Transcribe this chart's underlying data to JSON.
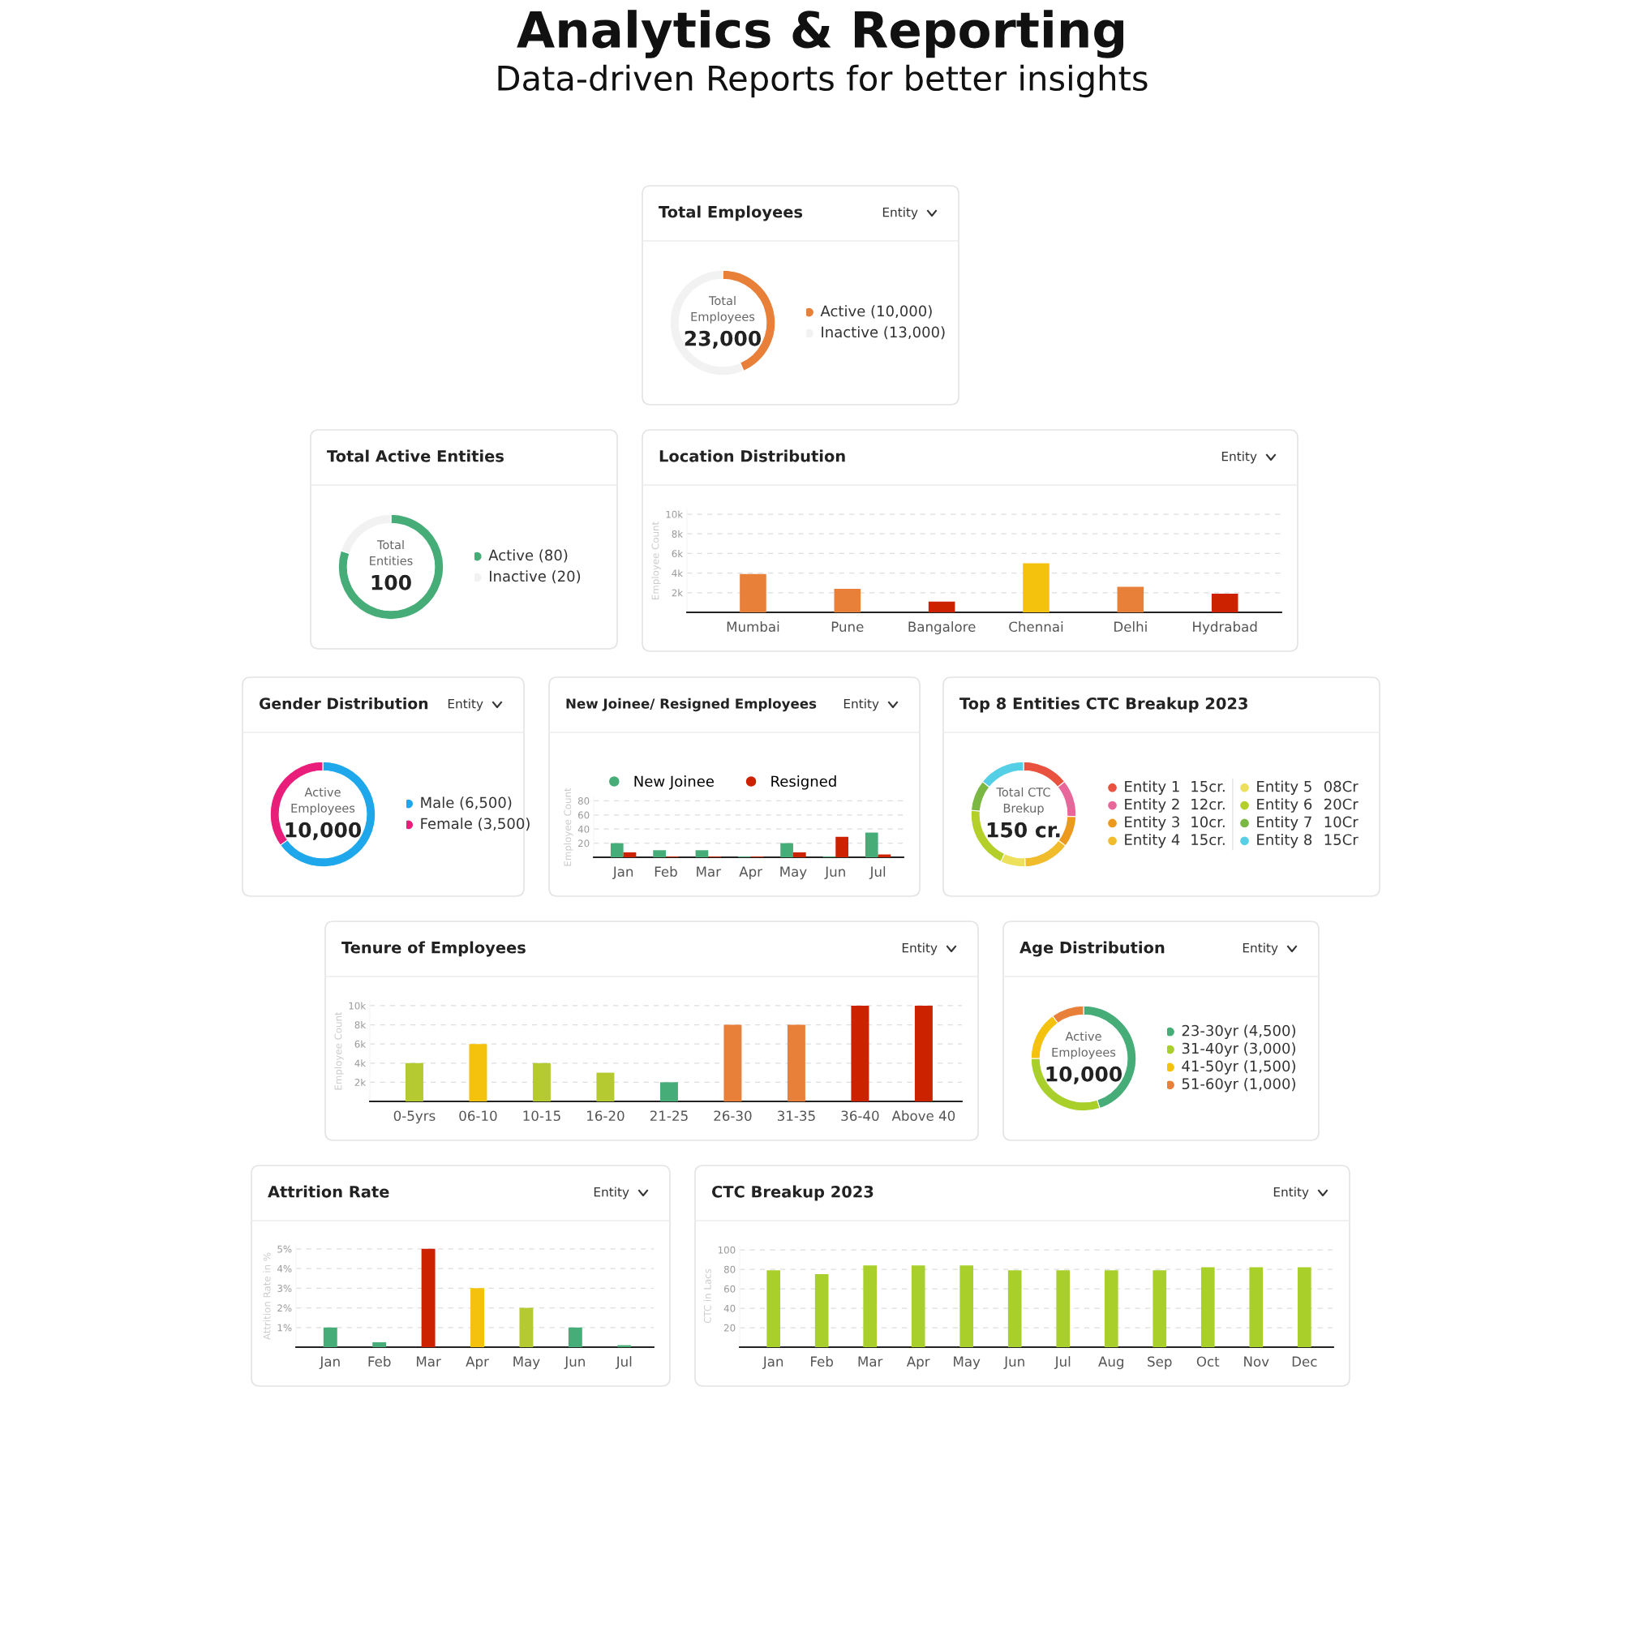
{
  "chart_data": [
    {
      "type": "other",
      "title": "Analytics & Reporting",
      "subtitle": "Data-driven Reports for better insights"
    },
    {
      "type": "donut",
      "title": "Total Employees",
      "subtitle": "Entity",
      "categories": [
        "Active (10,000)",
        "Inactive (13,000)"
      ],
      "values": [
        10000,
        13000
      ],
      "colors": [
        "#e8803a",
        "#f2f2f2"
      ],
      "legend": "right",
      "annotations": [
        "Total\nEmployees",
        "23,000"
      ]
    },
    {
      "type": "donut",
      "title": "Total Active Entities",
      "categories": [
        "Active (80)",
        "Inactive (20)"
      ],
      "values": [
        80,
        20
      ],
      "colors": [
        "#47ad78",
        "#f2f2f2"
      ],
      "legend": "right",
      "annotations": [
        "Total\nEntities",
        "100"
      ]
    },
    {
      "type": "bar",
      "title": "Location Distribution",
      "subtitle": "Entity",
      "ylabel": "Employee Count",
      "categories": [
        "Mumbai",
        "Pune",
        "Bangalore",
        "Chennai",
        "Delhi",
        "Hydrabad"
      ],
      "values": [
        3900,
        2400,
        1100,
        5000,
        2600,
        1900
      ],
      "colors": [
        "#e8803a",
        "#e8803a",
        "#cc2200",
        "#f4c20d",
        "#e8803a",
        "#cc2200"
      ],
      "ylim": [
        0,
        10500
      ],
      "yticks": [
        {
          "value": 2000,
          "label": "2k"
        },
        {
          "value": 4000,
          "label": "4k"
        },
        {
          "value": 6000,
          "label": "6k"
        },
        {
          "value": 8000,
          "label": "8k"
        },
        {
          "value": 10000,
          "label": "10k"
        }
      ],
      "grid": "y"
    },
    {
      "type": "donut",
      "title": "Gender Distribution",
      "subtitle": "Entity",
      "categories": [
        "Male (6,500)",
        "Female (3,500)"
      ],
      "values": [
        6500,
        3500
      ],
      "colors": [
        "#1ea7ea",
        "#e91e7b"
      ],
      "legend": "right",
      "annotations": [
        "Active\nEmployees",
        "10,000"
      ]
    },
    {
      "type": "bar",
      "title": "New Joinee/ Resigned Employees",
      "subtitle": "Entity",
      "ylabel": "Employee Count",
      "categories": [
        "Jan",
        "Feb",
        "Mar",
        "Apr",
        "May",
        "Jun",
        "Jul"
      ],
      "series": [
        {
          "name": "New Joinee",
          "color": "#47ad78",
          "values": [
            20,
            10,
            10,
            1,
            20,
            1,
            35
          ]
        },
        {
          "name": "Resigned",
          "color": "#cc2200",
          "values": [
            7,
            1,
            1,
            1,
            7,
            29,
            4
          ]
        }
      ],
      "ylim": [
        0,
        85
      ],
      "yticks": [
        20,
        40,
        60,
        80
      ],
      "grid": "y",
      "legend": "top left"
    },
    {
      "type": "donut",
      "title": "Top 8 Entities CTC Breakup 2023",
      "categories": [
        "Entity 1",
        "Entity 2",
        "Entity 3",
        "Entity 4",
        "Entity 5",
        "Entity 6",
        "Entity 7",
        "Entity 8"
      ],
      "values": [
        15,
        12,
        10,
        15,
        8,
        20,
        10,
        15
      ],
      "value_labels": [
        "15cr.",
        "12cr.",
        "10cr.",
        "15cr.",
        "08Cr",
        "20Cr",
        "10Cr",
        "15Cr"
      ],
      "colors": [
        "#e8523f",
        "#e8679a",
        "#ec9a1e",
        "#f0bc2c",
        "#ede05a",
        "#b5cf2a",
        "#7ab843",
        "#55cfe5"
      ],
      "legend": "right",
      "annotations": [
        "Total CTC\nBrekup",
        "150 cr."
      ]
    },
    {
      "type": "bar",
      "title": "Tenure of Employees",
      "subtitle": "Entity",
      "ylabel": "Employee Count",
      "categories": [
        "0-5yrs",
        "06-10",
        "10-15",
        "16-20",
        "21-25",
        "26-30",
        "31-35",
        "36-40",
        "Above 40"
      ],
      "values": [
        4000,
        6000,
        4000,
        3000,
        2000,
        8000,
        8000,
        10000,
        10000
      ],
      "colors": [
        "#b5c930",
        "#f4c20d",
        "#b5c930",
        "#b5c930",
        "#47ad78",
        "#e8803a",
        "#e8803a",
        "#cc2200",
        "#cc2200"
      ],
      "ylim": [
        0,
        10500
      ],
      "yticks": [
        {
          "value": 2000,
          "label": "2k"
        },
        {
          "value": 4000,
          "label": "4k"
        },
        {
          "value": 6000,
          "label": "6k"
        },
        {
          "value": 8000,
          "label": "8k"
        },
        {
          "value": 10000,
          "label": "10k"
        }
      ],
      "grid": "y"
    },
    {
      "type": "donut",
      "title": "Age Distribution",
      "subtitle": "Entity",
      "categories": [
        "23-30yr (4,500)",
        "31-40yr (3,000)",
        "41-50yr (1,500)",
        "51-60yr (1,000)"
      ],
      "values": [
        4500,
        3000,
        1500,
        1000
      ],
      "colors": [
        "#47ad78",
        "#a8cf2a",
        "#f4c20d",
        "#e8803a"
      ],
      "legend": "right",
      "annotations": [
        "Active\nEmployees",
        "10,000"
      ]
    },
    {
      "type": "bar",
      "title": "Attrition Rate",
      "subtitle": "Entity",
      "ylabel": "Attrition Rate in %",
      "categories": [
        "Jan",
        "Feb",
        "Mar",
        "Apr",
        "May",
        "Jun",
        "Jul"
      ],
      "values": [
        1,
        0.25,
        5,
        3,
        2,
        1,
        0.1
      ],
      "colors": [
        "#47ad78",
        "#47ad78",
        "#cc2200",
        "#f4c20d",
        "#b5c930",
        "#47ad78",
        "#47ad78"
      ],
      "ylim": [
        0,
        5.2
      ],
      "yticks": [
        {
          "value": 1,
          "label": "1%"
        },
        {
          "value": 2,
          "label": "2%"
        },
        {
          "value": 3,
          "label": "3%"
        },
        {
          "value": 4,
          "label": "4%"
        },
        {
          "value": 5,
          "label": "5%"
        }
      ],
      "grid": "y"
    },
    {
      "type": "bar",
      "title": "CTC Breakup 2023",
      "subtitle": "Entity",
      "ylabel": "CTC in Lacs",
      "categories": [
        "Jan",
        "Feb",
        "Mar",
        "Apr",
        "May",
        "Jun",
        "Jul",
        "Aug",
        "Sep",
        "Oct",
        "Nov",
        "Dec"
      ],
      "values": [
        79,
        75,
        84,
        84,
        84,
        79,
        79,
        79,
        79,
        82,
        82,
        82
      ],
      "colors": [
        "#a8cf2a",
        "#a8cf2a",
        "#a8cf2a",
        "#a8cf2a",
        "#a8cf2a",
        "#a8cf2a",
        "#a8cf2a",
        "#a8cf2a",
        "#a8cf2a",
        "#a8cf2a",
        "#a8cf2a",
        "#a8cf2a"
      ],
      "ylim": [
        0,
        105
      ],
      "yticks": [
        20,
        40,
        60,
        80,
        100
      ],
      "grid": "y"
    }
  ]
}
